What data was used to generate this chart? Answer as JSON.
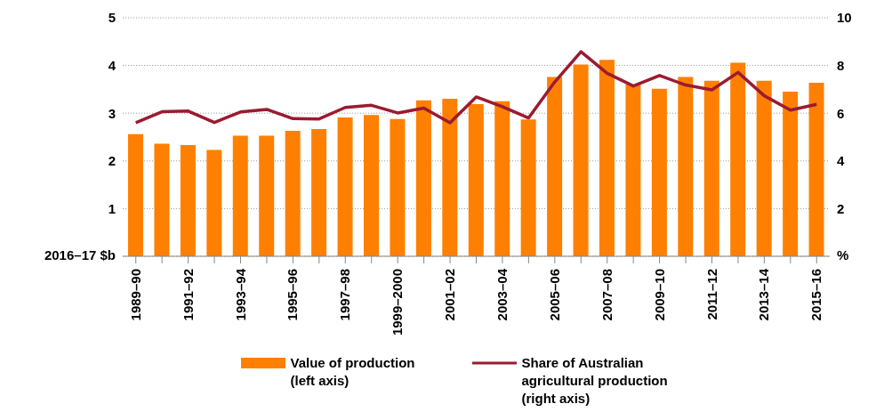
{
  "chart_data": {
    "type": "bar",
    "ylabel": "2016–17 $b",
    "y2label": "%",
    "categories": [
      "1989–90",
      null,
      "1991–92",
      null,
      "1993–94",
      null,
      "1995–96",
      null,
      "1997–98",
      null,
      "1999–2000",
      null,
      "2001–02",
      null,
      "2003–04",
      null,
      "2005–06",
      null,
      "2007–08",
      null,
      "2009–10",
      null,
      "2011–12",
      null,
      "2013–14",
      null,
      "2015–16"
    ],
    "series": [
      {
        "name": "Value of production (left axis)",
        "color": "#ff7f00",
        "values": [
          2.56,
          2.36,
          2.33,
          2.23,
          2.53,
          2.53,
          2.63,
          2.67,
          2.91,
          2.96,
          2.88,
          3.27,
          3.3,
          3.19,
          3.25,
          2.87,
          3.76,
          4.02,
          4.12,
          3.6,
          3.51,
          3.76,
          3.68,
          4.06,
          3.68,
          3.45,
          3.64
        ]
      },
      {
        "name": "Share of Australian agricultural production (right axis)",
        "type": "line",
        "axis": "y2",
        "color": "#9b1b30",
        "values": [
          5.6,
          6.06,
          6.09,
          5.61,
          6.05,
          6.16,
          5.77,
          5.76,
          6.24,
          6.33,
          6.01,
          6.21,
          5.6,
          6.68,
          6.27,
          5.8,
          7.31,
          8.58,
          7.67,
          7.14,
          7.58,
          7.18,
          6.98,
          7.71,
          6.73,
          6.13,
          6.37
        ]
      }
    ],
    "ylim": [
      0,
      5
    ],
    "yticks": [
      {
        "value": 0,
        "label": null
      },
      1,
      2,
      3,
      4,
      5
    ],
    "y2lim": [
      0,
      10
    ],
    "y2ticks": [
      2,
      4,
      6,
      8,
      10
    ],
    "grid": "y",
    "legend": "bottom",
    "marker": "none",
    "line_style": "solid"
  }
}
